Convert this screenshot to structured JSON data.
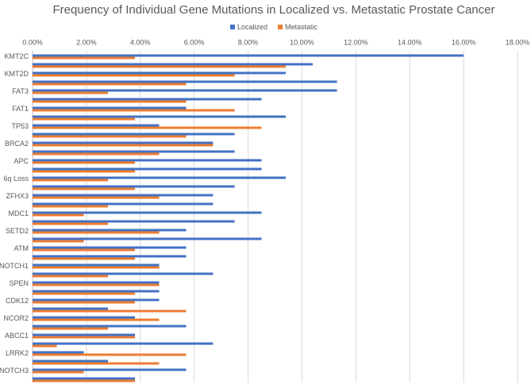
{
  "chart_data": {
    "type": "hbar",
    "title": "Frequency of Individual Gene Mutations in Localized vs. Metastatic Prostate Cancer",
    "categories": [
      "KMT2C",
      null,
      "KMT2D",
      null,
      "FAT3",
      null,
      "FAT1",
      null,
      "TP53",
      null,
      "BRCA2",
      null,
      "APC",
      null,
      "6q Loss",
      null,
      "ZFHX3",
      null,
      "MDC1",
      null,
      "SETD2",
      null,
      "ATM",
      null,
      "NOTCH1",
      null,
      "SPEN",
      null,
      "CDK12",
      null,
      "NCOR2",
      null,
      "ABCC1",
      null,
      "LRRK2",
      null,
      "NOTCH3",
      null
    ],
    "series": [
      {
        "name": "Localized",
        "color": "#4472c4",
        "values": [
          16.0,
          10.4,
          9.4,
          11.3,
          11.3,
          8.5,
          5.7,
          9.4,
          4.7,
          7.5,
          6.7,
          7.5,
          8.5,
          8.5,
          9.4,
          7.5,
          6.7,
          6.7,
          8.5,
          7.5,
          5.7,
          8.5,
          5.7,
          5.7,
          4.7,
          6.7,
          4.7,
          4.7,
          4.7,
          2.8,
          3.8,
          5.7,
          3.8,
          6.7,
          1.9,
          2.8,
          5.7,
          3.8
        ]
      },
      {
        "name": "Metastatic",
        "color": "#ed7d31",
        "values": [
          3.8,
          9.4,
          7.5,
          5.7,
          2.8,
          5.7,
          7.5,
          3.8,
          8.5,
          5.7,
          6.7,
          4.7,
          3.8,
          3.8,
          2.8,
          3.8,
          4.7,
          2.8,
          1.9,
          2.8,
          4.7,
          1.9,
          3.8,
          3.8,
          4.7,
          2.8,
          4.7,
          3.8,
          3.8,
          5.7,
          4.7,
          2.8,
          3.8,
          0.9,
          5.7,
          4.7,
          1.9,
          3.8
        ]
      }
    ],
    "xlim": [
      0,
      18
    ],
    "xticks": [
      {
        "value": 0,
        "label": "0.00%"
      },
      {
        "value": 2,
        "label": "2.00%"
      },
      {
        "value": 4,
        "label": "4.00%"
      },
      {
        "value": 6,
        "label": "6.00%"
      },
      {
        "value": 8,
        "label": "8.00%"
      },
      {
        "value": 10,
        "label": "10.00%"
      },
      {
        "value": 12,
        "label": "12.00%"
      },
      {
        "value": 14,
        "label": "14.00%"
      },
      {
        "value": 16,
        "label": "16.00%"
      },
      {
        "value": 18,
        "label": "18.00%"
      }
    ],
    "grid": true,
    "legend": "top"
  }
}
